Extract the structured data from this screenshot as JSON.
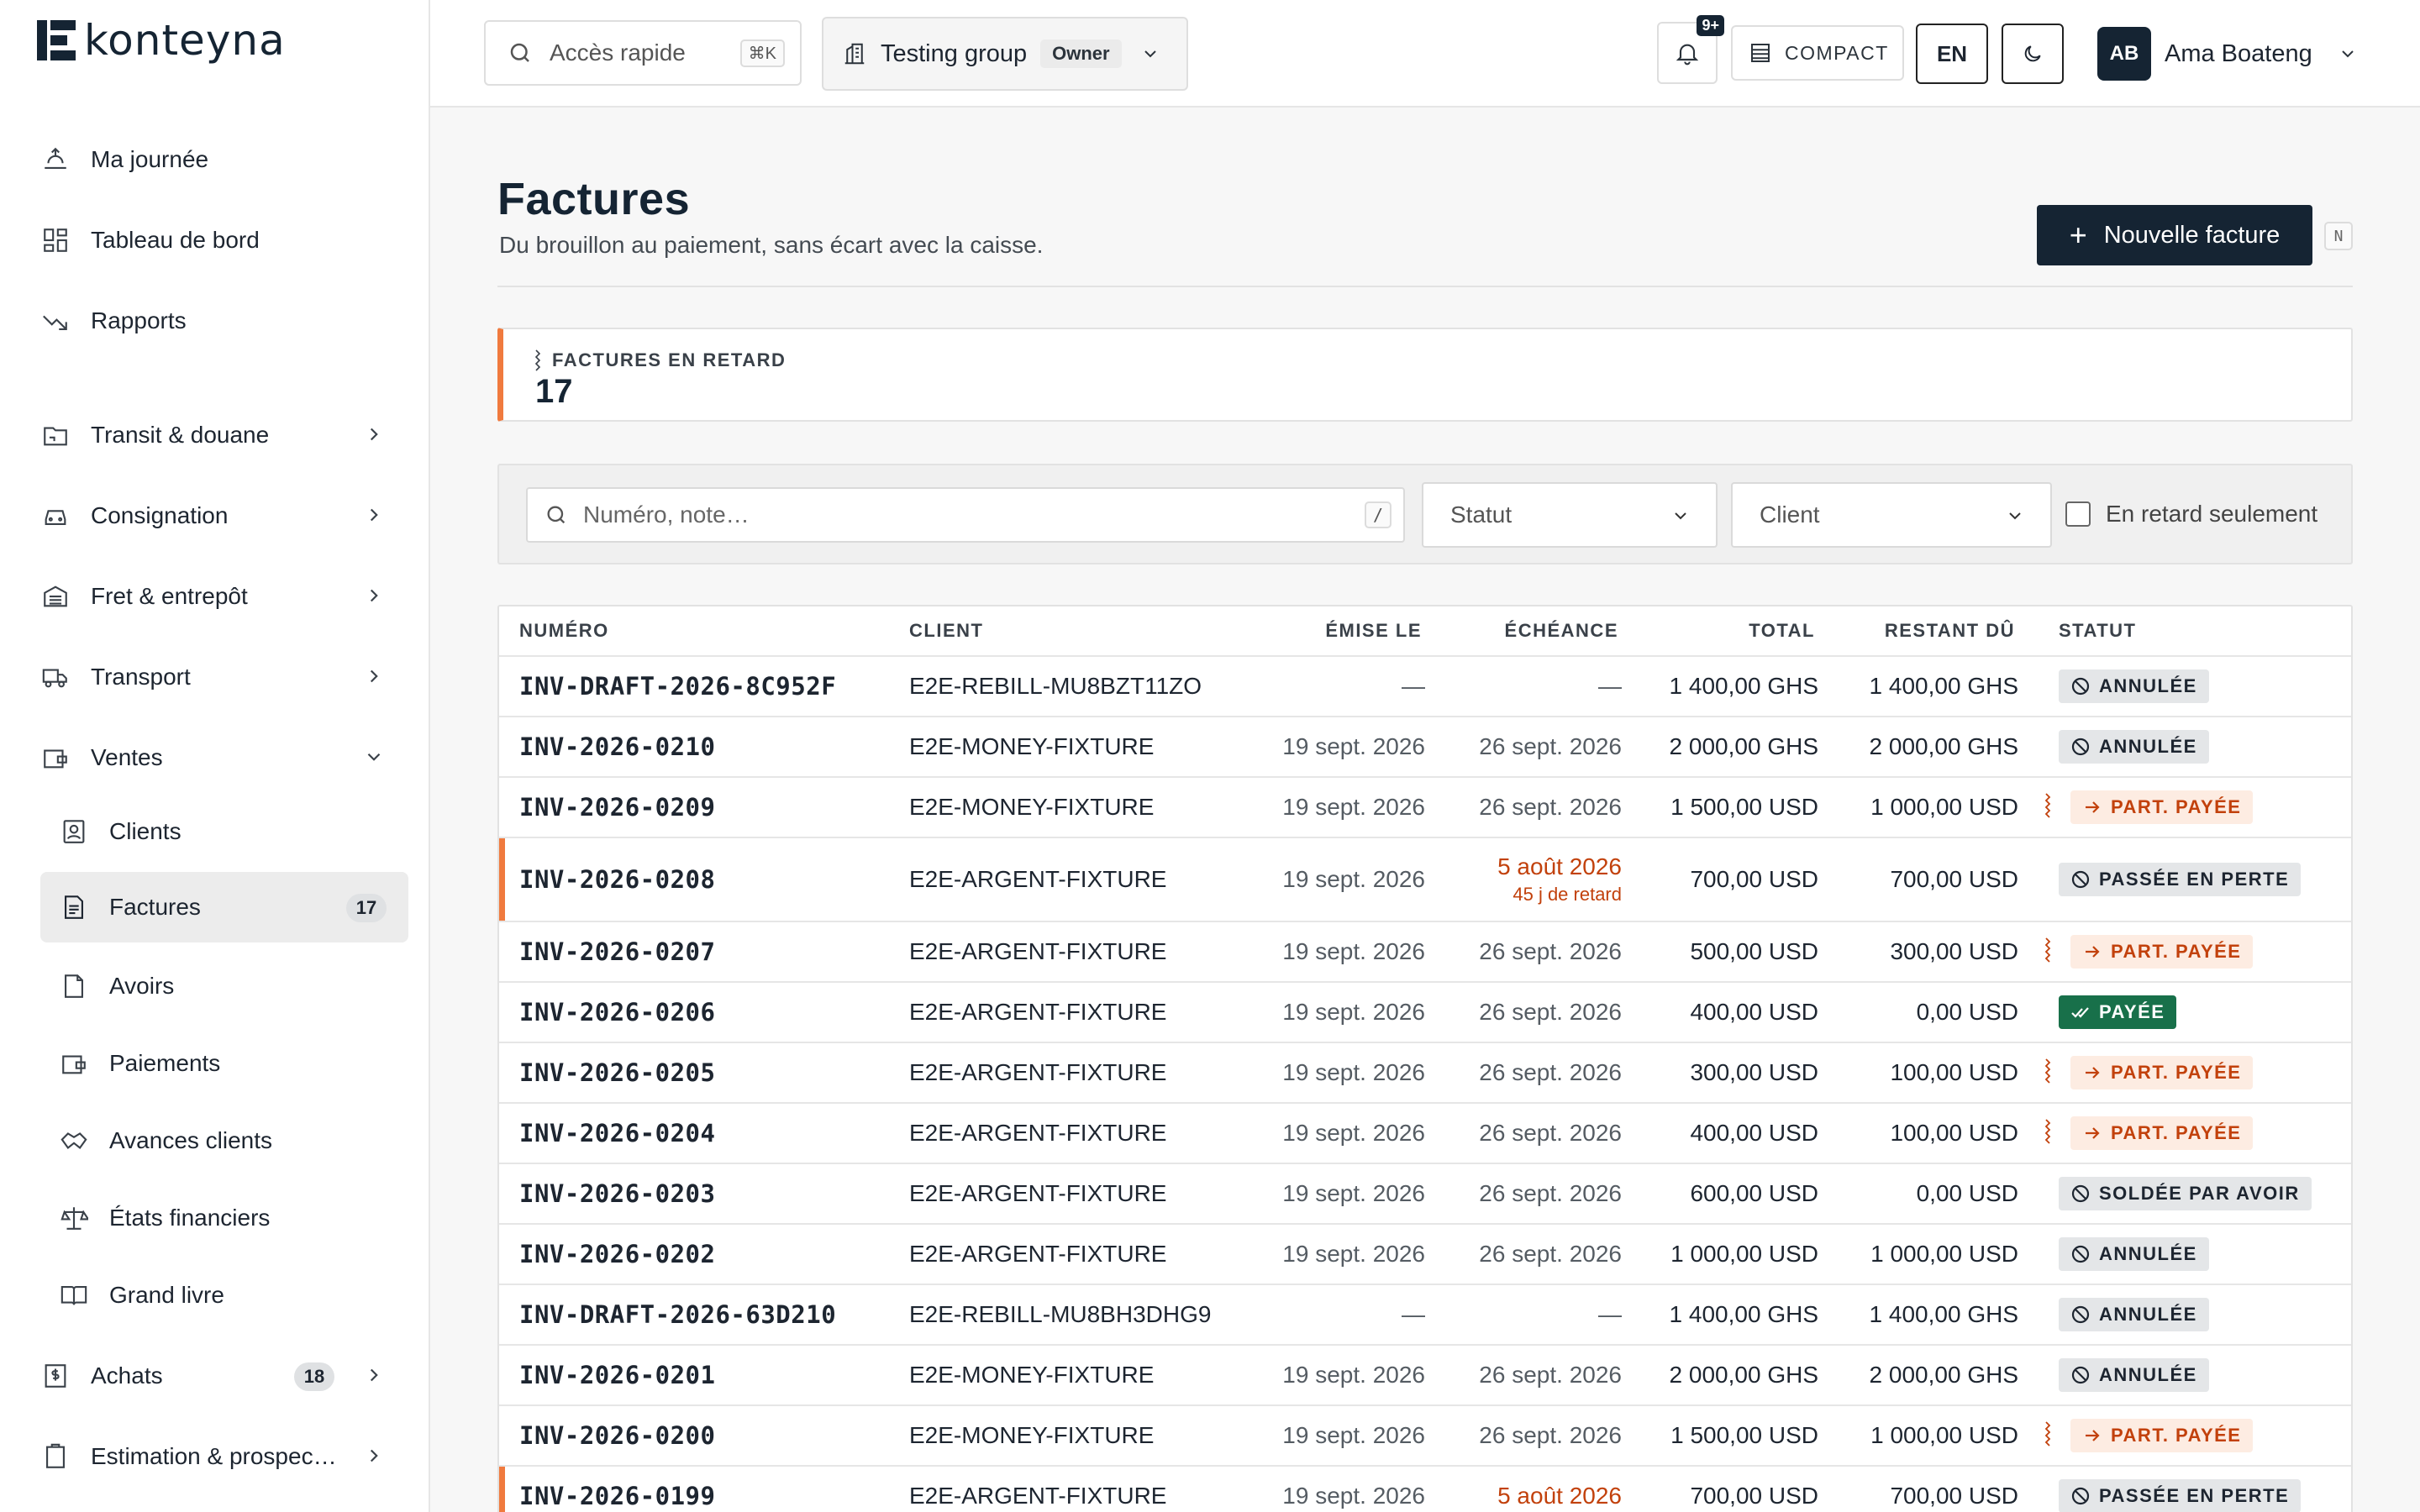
{
  "brand": {
    "name": "konteyna"
  },
  "sidebar": {
    "items": [
      {
        "label": "Ma journée",
        "icon": "sunrise-icon"
      },
      {
        "label": "Tableau de bord",
        "icon": "dashboard-icon"
      },
      {
        "label": "Rapports",
        "icon": "trend-down-icon"
      },
      {
        "label": "Transit & douane",
        "icon": "customs-icon"
      },
      {
        "label": "Consignation",
        "icon": "car-icon"
      },
      {
        "label": "Fret & entrepôt",
        "icon": "warehouse-icon"
      },
      {
        "label": "Transport",
        "icon": "truck-icon"
      },
      {
        "label": "Ventes",
        "icon": "wallet-icon"
      },
      {
        "label": "Achats",
        "icon": "dollar-doc-icon",
        "badge": "18"
      },
      {
        "label": "Estimation & prospec…",
        "icon": "clipboard-icon"
      }
    ],
    "sub_items": [
      {
        "label": "Clients",
        "icon": "contact-icon"
      },
      {
        "label": "Factures",
        "icon": "invoice-icon",
        "badge": "17"
      },
      {
        "label": "Avoirs",
        "icon": "file-icon"
      },
      {
        "label": "Paiements",
        "icon": "wallet-icon"
      },
      {
        "label": "Avances clients",
        "icon": "handshake-icon"
      },
      {
        "label": "États financiers",
        "icon": "scale-icon"
      },
      {
        "label": "Grand livre",
        "icon": "book-icon"
      }
    ]
  },
  "topbar": {
    "quick_access": "Accès rapide",
    "quick_shortcut": "⌘K",
    "group_name": "Testing group",
    "group_role": "Owner",
    "notifications": "9+",
    "compact_label": "COMPACT",
    "lang": "EN",
    "user_initials": "AB",
    "user_name": "Ama Boateng"
  },
  "page": {
    "title": "Factures",
    "subtitle": "Du brouillon au paiement, sans écart avec la caisse.",
    "new_button": "Nouvelle facture",
    "new_shortcut": "N"
  },
  "kpi": {
    "label": "FACTURES EN RETARD",
    "value": "17"
  },
  "filters": {
    "search_placeholder": "Numéro, note…",
    "search_shortcut": "/",
    "status_label": "Statut",
    "client_label": "Client",
    "late_only": "En retard seulement"
  },
  "table": {
    "headers": {
      "number": "NUMÉRO",
      "client": "CLIENT",
      "issued": "ÉMISE LE",
      "due": "ÉCHÉANCE",
      "total": "TOTAL",
      "remaining": "RESTANT DÛ",
      "status": "STATUT"
    },
    "rows": [
      {
        "number": "INV-DRAFT-2026-8C952F",
        "client": "E2E-REBILL-MU8BZT11ZO",
        "issued": "—",
        "due": "—",
        "due_note": "",
        "total": "1 400,00 GHS",
        "remaining": "1 400,00 GHS",
        "status": "ANNULÉE",
        "status_kind": "cancelled",
        "late": false
      },
      {
        "number": "INV-2026-0210",
        "client": "E2E-MONEY-FIXTURE",
        "issued": "19 sept. 2026",
        "due": "26 sept. 2026",
        "due_note": "",
        "total": "2 000,00 GHS",
        "remaining": "2 000,00 GHS",
        "status": "ANNULÉE",
        "status_kind": "cancelled",
        "late": false
      },
      {
        "number": "INV-2026-0209",
        "client": "E2E-MONEY-FIXTURE",
        "issued": "19 sept. 2026",
        "due": "26 sept. 2026",
        "due_note": "",
        "total": "1 500,00 USD",
        "remaining": "1 000,00 USD",
        "status": "PART. PAYÉE",
        "status_kind": "partial",
        "late": false
      },
      {
        "number": "INV-2026-0208",
        "client": "E2E-ARGENT-FIXTURE",
        "issued": "19 sept. 2026",
        "due": "5 août 2026",
        "due_note": "45 j de retard",
        "total": "700,00 USD",
        "remaining": "700,00 USD",
        "status": "PASSÉE EN PERTE",
        "status_kind": "cancelled",
        "late": true
      },
      {
        "number": "INV-2026-0207",
        "client": "E2E-ARGENT-FIXTURE",
        "issued": "19 sept. 2026",
        "due": "26 sept. 2026",
        "due_note": "",
        "total": "500,00 USD",
        "remaining": "300,00 USD",
        "status": "PART. PAYÉE",
        "status_kind": "partial",
        "late": false
      },
      {
        "number": "INV-2026-0206",
        "client": "E2E-ARGENT-FIXTURE",
        "issued": "19 sept. 2026",
        "due": "26 sept. 2026",
        "due_note": "",
        "total": "400,00 USD",
        "remaining": "0,00 USD",
        "status": "PAYÉE",
        "status_kind": "paid",
        "late": false
      },
      {
        "number": "INV-2026-0205",
        "client": "E2E-ARGENT-FIXTURE",
        "issued": "19 sept. 2026",
        "due": "26 sept. 2026",
        "due_note": "",
        "total": "300,00 USD",
        "remaining": "100,00 USD",
        "status": "PART. PAYÉE",
        "status_kind": "partial",
        "late": false
      },
      {
        "number": "INV-2026-0204",
        "client": "E2E-ARGENT-FIXTURE",
        "issued": "19 sept. 2026",
        "due": "26 sept. 2026",
        "due_note": "",
        "total": "400,00 USD",
        "remaining": "100,00 USD",
        "status": "PART. PAYÉE",
        "status_kind": "partial",
        "late": false
      },
      {
        "number": "INV-2026-0203",
        "client": "E2E-ARGENT-FIXTURE",
        "issued": "19 sept. 2026",
        "due": "26 sept. 2026",
        "due_note": "",
        "total": "600,00 USD",
        "remaining": "0,00 USD",
        "status": "SOLDÉE PAR AVOIR",
        "status_kind": "cancelled",
        "late": false
      },
      {
        "number": "INV-2026-0202",
        "client": "E2E-ARGENT-FIXTURE",
        "issued": "19 sept. 2026",
        "due": "26 sept. 2026",
        "due_note": "",
        "total": "1 000,00 USD",
        "remaining": "1 000,00 USD",
        "status": "ANNULÉE",
        "status_kind": "cancelled",
        "late": false
      },
      {
        "number": "INV-DRAFT-2026-63D210",
        "client": "E2E-REBILL-MU8BH3DHG9",
        "issued": "—",
        "due": "—",
        "due_note": "",
        "total": "1 400,00 GHS",
        "remaining": "1 400,00 GHS",
        "status": "ANNULÉE",
        "status_kind": "cancelled",
        "late": false
      },
      {
        "number": "INV-2026-0201",
        "client": "E2E-MONEY-FIXTURE",
        "issued": "19 sept. 2026",
        "due": "26 sept. 2026",
        "due_note": "",
        "total": "2 000,00 GHS",
        "remaining": "2 000,00 GHS",
        "status": "ANNULÉE",
        "status_kind": "cancelled",
        "late": false
      },
      {
        "number": "INV-2026-0200",
        "client": "E2E-MONEY-FIXTURE",
        "issued": "19 sept. 2026",
        "due": "26 sept. 2026",
        "due_note": "",
        "total": "1 500,00 USD",
        "remaining": "1 000,00 USD",
        "status": "PART. PAYÉE",
        "status_kind": "partial",
        "late": false
      },
      {
        "number": "INV-2026-0199",
        "client": "E2E-ARGENT-FIXTURE",
        "issued": "19 sept. 2026",
        "due": "5 août 2026",
        "due_note": "",
        "total": "700,00 USD",
        "remaining": "700,00 USD",
        "status": "PASSÉE EN PERTE",
        "status_kind": "cancelled",
        "late": true
      }
    ]
  },
  "colors": {
    "brand": "#152433",
    "late_accent": "#f07a3e",
    "late_text": "#c2410c",
    "paid": "#18704a"
  }
}
